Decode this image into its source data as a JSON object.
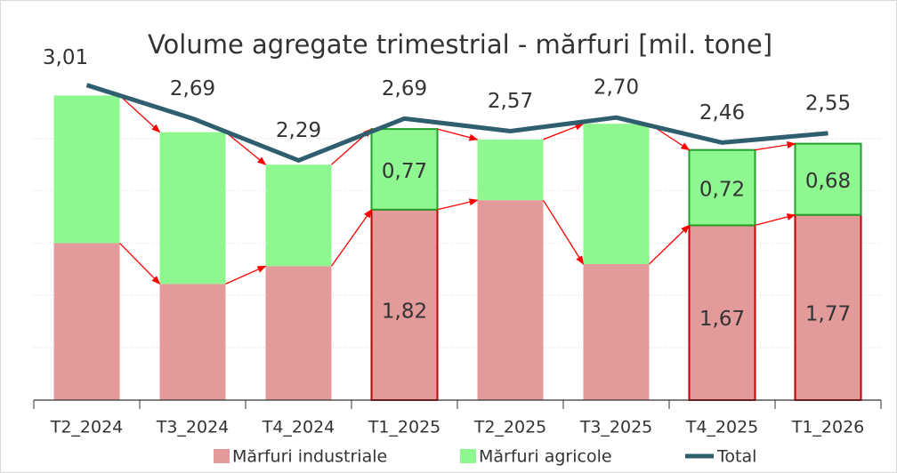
{
  "chart_data": {
    "type": "bar",
    "title": "Volume agregate trimestrial - mărfuri [mil. tone]",
    "categories": [
      "T2_2024",
      "T3_2024",
      "T4_2024",
      "T1_2025",
      "T2_2025",
      "T3_2025",
      "T4_2025",
      "T1_2026"
    ],
    "stacked": true,
    "series": [
      {
        "name": "Mărfuri industriale",
        "color": "#e39a9a",
        "border": "#c00000",
        "values": [
          1.5,
          1.11,
          1.28,
          1.82,
          1.91,
          1.3,
          1.67,
          1.77
        ],
        "value_labels": [
          null,
          null,
          null,
          "1,82",
          null,
          null,
          "1,67",
          "1,77"
        ]
      },
      {
        "name": "Mărfuri agricole",
        "color": "#8ff78f",
        "border": "#22a02a",
        "values": [
          1.41,
          1.45,
          0.97,
          0.77,
          0.58,
          1.34,
          0.72,
          0.68
        ],
        "value_labels": [
          null,
          null,
          null,
          "0,77",
          null,
          null,
          "0,72",
          "0,68"
        ]
      },
      {
        "name": "Total",
        "type": "line",
        "color": "#2f5f6f",
        "values": [
          3.01,
          2.69,
          2.29,
          2.69,
          2.57,
          2.7,
          2.46,
          2.55
        ],
        "value_labels": [
          "3,01",
          "2,69",
          "2,29",
          "2,69",
          "2,57",
          "2,70",
          "2,46",
          "2,55"
        ]
      }
    ],
    "ylim": [
      0,
      3.5
    ],
    "yticks": [
      0.5,
      1,
      1.5,
      2,
      2.5
    ],
    "grid": true,
    "legend": "bottom",
    "arrow_color": "#ff0000"
  }
}
